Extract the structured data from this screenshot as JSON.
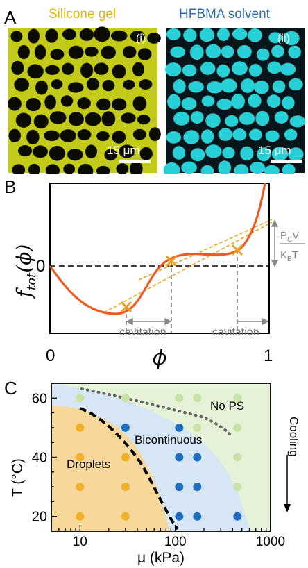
{
  "panelA": {
    "letter": "A",
    "left_title": "Silicone gel",
    "right_title": "HFBMA solvent",
    "left_tag": "(i)",
    "right_tag": "(ii)",
    "left_scale": "15 μm",
    "right_scale": "15 μm",
    "colors": {
      "silicone": "#e6b800",
      "solvent": "#2e7fbf",
      "gel_fill": "#c8d21e",
      "droplet_fill": "#2ad1d6"
    }
  },
  "panelB": {
    "letter": "B",
    "ylabel_main": "f",
    "ylabel_sub": "tot",
    "ylabel_arg": "(ϕ)",
    "y_zero": "0",
    "x_zero": "0",
    "x_one": "1",
    "x_symbol": "ϕ",
    "cavitation_left": "cavitation",
    "cavitation_right": "cavitation",
    "pcv_top_p": "P",
    "pcv_top_sub": "C",
    "pcv_top_v": "V",
    "pcv_bottom_k": "K",
    "pcv_bottom_sub": "B",
    "pcv_bottom_t": "T",
    "colors": {
      "curve": "#f05a1e",
      "marker": "#f0a020",
      "tangent": "#f0a020"
    }
  },
  "panelC": {
    "letter": "C",
    "ylabel": "T (°C)",
    "xlabel": "μ (kPa)",
    "y_ticks": [
      "20",
      "40",
      "60"
    ],
    "x_ticks": [
      "10",
      "100",
      "1000"
    ],
    "region_droplets": "Droplets",
    "region_bicontinuous": "Bicontinuous",
    "region_nops": "No PS",
    "cooling": "Cooling",
    "colors": {
      "droplets": "#f7d79a",
      "bicontinuous": "#d6e6f5",
      "nops": "#e6f2d8",
      "dot_orange": "#f0b02a",
      "dot_blue": "#1f6fc0",
      "dot_green": "#c8e3a8"
    }
  },
  "chart_data": {
    "type": "scatter",
    "xlabel": "μ (kPa)",
    "ylabel": "T (°C)",
    "xlim": [
      5,
      1000
    ],
    "ylim": [
      15,
      65
    ],
    "xscale": "log",
    "series": [
      {
        "name": "Droplets",
        "points": [
          [
            10,
            20
          ],
          [
            10,
            30
          ],
          [
            10,
            40
          ],
          [
            10,
            50
          ],
          [
            30,
            20
          ],
          [
            30,
            30
          ],
          [
            30,
            40
          ]
        ]
      },
      {
        "name": "Bicontinuous",
        "points": [
          [
            30,
            50
          ],
          [
            110,
            50
          ],
          [
            110,
            40
          ],
          [
            110,
            30
          ],
          [
            110,
            20
          ],
          [
            170,
            40
          ],
          [
            170,
            30
          ],
          [
            170,
            20
          ],
          [
            450,
            20
          ]
        ]
      },
      {
        "name": "No PS",
        "points": [
          [
            10,
            60
          ],
          [
            30,
            60
          ],
          [
            110,
            60
          ],
          [
            170,
            60
          ],
          [
            170,
            50
          ],
          [
            450,
            60
          ],
          [
            450,
            50
          ],
          [
            450,
            40
          ],
          [
            450,
            30
          ]
        ]
      }
    ]
  }
}
